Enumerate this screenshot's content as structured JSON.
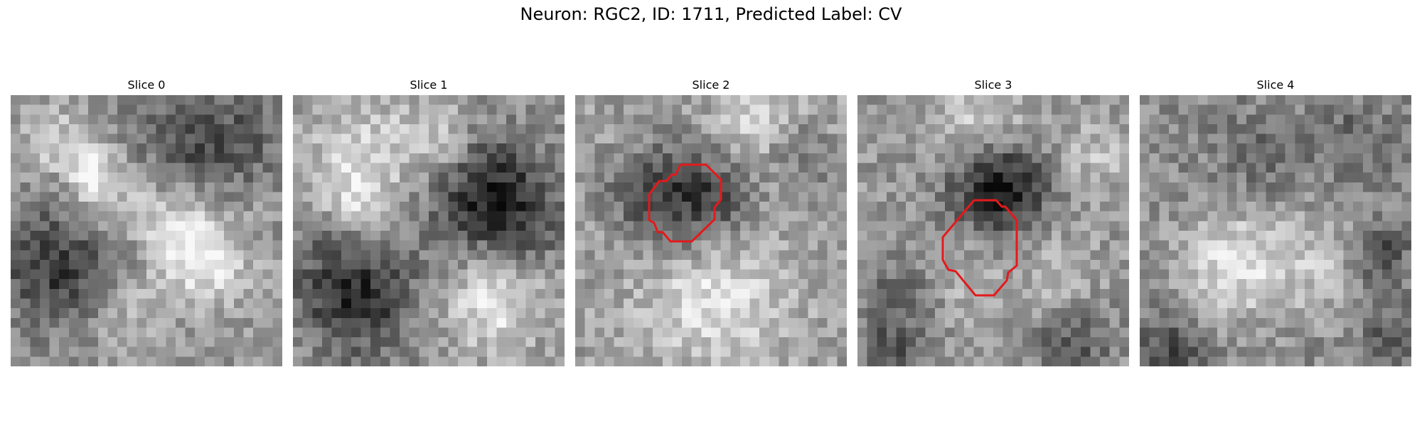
{
  "figure": {
    "title": "Neuron: RGC2, ID: 1711, Predicted Label: CV"
  },
  "panels": [
    {
      "title": "Slice 0",
      "has_contour": false
    },
    {
      "title": "Slice 1",
      "has_contour": false
    },
    {
      "title": "Slice 2",
      "has_contour": true
    },
    {
      "title": "Slice 3",
      "has_contour": true
    },
    {
      "title": "Slice 4",
      "has_contour": false
    }
  ],
  "colors": {
    "contour": "#e31a1c"
  }
}
